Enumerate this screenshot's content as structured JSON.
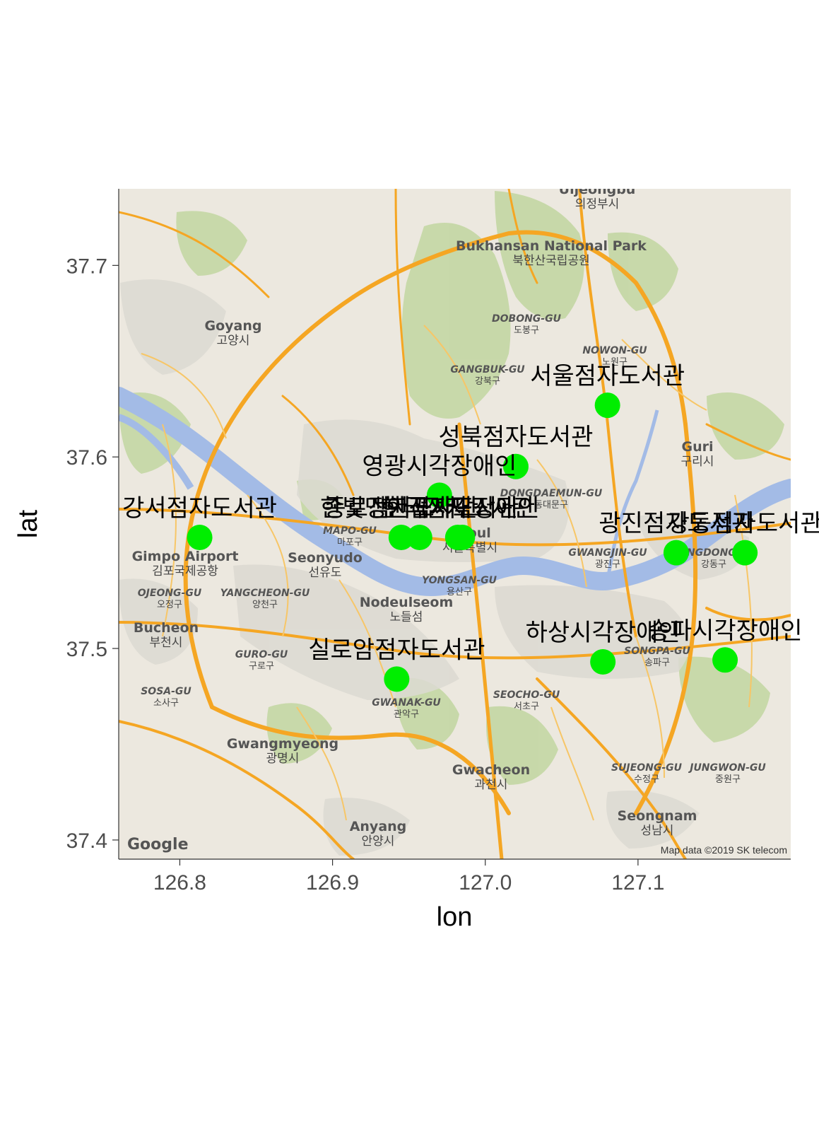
{
  "chart_data": {
    "type": "scatter",
    "xlabel": "lon",
    "ylabel": "lat",
    "xlim": [
      126.76,
      127.2
    ],
    "ylim": [
      37.39,
      37.74
    ],
    "xticks": [
      126.8,
      126.9,
      127.0,
      127.1
    ],
    "yticks": [
      37.4,
      37.5,
      37.6,
      37.7
    ],
    "xtick_labels": [
      "126.8",
      "126.9",
      "127.0",
      "127.1"
    ],
    "ytick_labels": [
      "37.4",
      "37.5",
      "37.6",
      "37.7"
    ],
    "point_color": "#00ee00",
    "grid": false,
    "points": [
      {
        "lon": 127.08,
        "lat": 37.627,
        "label": "서울점자도서관"
      },
      {
        "lon": 126.97,
        "lat": 37.58,
        "label": "영광시각장애인"
      },
      {
        "lon": 127.02,
        "lat": 37.595,
        "label": "성북점자도서관"
      },
      {
        "lon": 126.957,
        "lat": 37.558,
        "label": "한빛맹인점자도서관"
      },
      {
        "lon": 126.982,
        "lat": 37.558,
        "label": "한국점자도서관"
      },
      {
        "lon": 126.813,
        "lat": 37.558,
        "label": "강서점자도서관"
      },
      {
        "lon": 126.945,
        "lat": 37.558,
        "label": "종로점자도서관"
      },
      {
        "lon": 126.985,
        "lat": 37.558,
        "label": "한국시각장애인"
      },
      {
        "lon": 127.125,
        "lat": 37.55,
        "label": "광진점자도서관"
      },
      {
        "lon": 127.17,
        "lat": 37.55,
        "label": "강동점자도서관"
      },
      {
        "lon": 126.942,
        "lat": 37.484,
        "label": "실로암점자도서관"
      },
      {
        "lon": 127.077,
        "lat": 37.493,
        "label": "하상시각장애인"
      },
      {
        "lon": 127.157,
        "lat": 37.494,
        "label": "송파시각장애인"
      }
    ]
  },
  "map": {
    "attribution": "Map data ©2019 SK telecom",
    "logo": "Google",
    "places": [
      {
        "name": "Uijeongbu",
        "ko": "의정부시"
      },
      {
        "name": "Bukhansan National Park",
        "ko": "북한산국립공원"
      },
      {
        "name": "Goyang",
        "ko": "고양시"
      },
      {
        "name": "DOBONG-GU",
        "ko": "도봉구"
      },
      {
        "name": "NOWON-GU",
        "ko": "노원구"
      },
      {
        "name": "GANGBUK-GU",
        "ko": "강북구"
      },
      {
        "name": "Guri",
        "ko": "구리시"
      },
      {
        "name": "DONGDAEMUN-GU",
        "ko": "동대문구"
      },
      {
        "name": "MAPO-GU",
        "ko": "마포구"
      },
      {
        "name": "Seonyudo",
        "ko": "선유도"
      },
      {
        "name": "Seoul",
        "ko": "서울특별시"
      },
      {
        "name": "YONGSAN-GU",
        "ko": "용산구"
      },
      {
        "name": "GWANGJIN-GU",
        "ko": "광진구"
      },
      {
        "name": "GANGDONG-GU",
        "ko": "강동구"
      },
      {
        "name": "OJEONG-GU",
        "ko": "오정구"
      },
      {
        "name": "YANGCHEON-GU",
        "ko": "양천구"
      },
      {
        "name": "Bucheon",
        "ko": "부천시"
      },
      {
        "name": "GURO-GU",
        "ko": "구로구"
      },
      {
        "name": "SOSA-GU",
        "ko": "소사구"
      },
      {
        "name": "GWANAK-GU",
        "ko": "관악구"
      },
      {
        "name": "SEOCHO-GU",
        "ko": "서초구"
      },
      {
        "name": "SONGPA-GU",
        "ko": "송파구"
      },
      {
        "name": "Gwangmyeong",
        "ko": "광명시"
      },
      {
        "name": "Gwacheon",
        "ko": "과천시"
      },
      {
        "name": "SUJEONG-GU",
        "ko": "수정구"
      },
      {
        "name": "JUNGWON-GU",
        "ko": "중원구"
      },
      {
        "name": "Seongnam",
        "ko": "성남시"
      },
      {
        "name": "Anyang",
        "ko": "안양시"
      },
      {
        "name": "Gimpo Airport",
        "ko": "김포국제공항"
      },
      {
        "name": "Nodeulseom",
        "ko": "노들섬"
      }
    ]
  }
}
